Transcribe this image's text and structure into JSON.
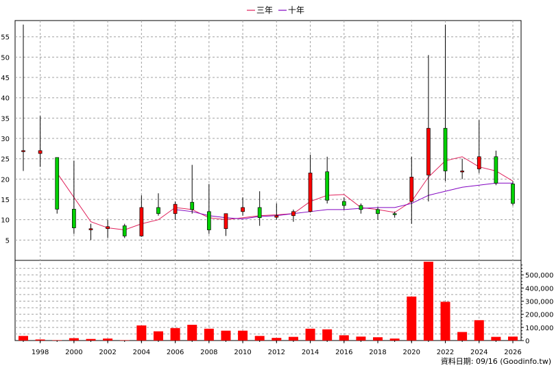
{
  "chart_data": {
    "type": "candlestick",
    "legend": [
      {
        "name": "三年",
        "color": "#e0205a"
      },
      {
        "name": "十年",
        "color": "#8000c0"
      }
    ],
    "legend_placement": "top-center",
    "price_axis": {
      "side": "left",
      "ticks": [
        5,
        10,
        15,
        20,
        25,
        30,
        35,
        40,
        45,
        50,
        55
      ],
      "range": [
        0,
        59
      ]
    },
    "volume_axis": {
      "side": "right",
      "ticks": [
        0,
        100000,
        200000,
        300000,
        400000,
        500000
      ],
      "tick_labels": [
        "0",
        "100,000",
        "200,000",
        "300,000",
        "400,000",
        "500,000"
      ],
      "range": [
        0,
        600000
      ]
    },
    "x_axis": {
      "ticks": [
        1998,
        2000,
        2002,
        2004,
        2006,
        2008,
        2010,
        2012,
        2014,
        2016,
        2018,
        2020,
        2022,
        2024,
        2026
      ]
    },
    "grid": true,
    "colors": {
      "up": "#ff0000",
      "down": "#00d000",
      "volume": "#ff0000",
      "wick": "#000000"
    },
    "candles": [
      {
        "year": 1997,
        "open": 27.0,
        "close": 27.0,
        "high": 58.0,
        "low": 22.0,
        "volume": 35000
      },
      {
        "year": 1998,
        "open": 26.3,
        "close": 27.0,
        "high": 35.5,
        "low": 23.0,
        "volume": 8000
      },
      {
        "year": 1999,
        "open": 25.3,
        "close": 12.6,
        "high": 25.3,
        "low": 11.5,
        "volume": 3000
      },
      {
        "year": 2000,
        "open": 12.6,
        "close": 8.0,
        "high": 24.5,
        "low": 6.5,
        "volume": 18000
      },
      {
        "year": 2001,
        "open": 7.5,
        "close": 7.8,
        "high": 9.0,
        "low": 5.0,
        "volume": 12000
      },
      {
        "year": 2002,
        "open": 7.8,
        "close": 8.3,
        "high": 10.0,
        "low": 5.5,
        "volume": 15000
      },
      {
        "year": 2003,
        "open": 8.5,
        "close": 6.0,
        "high": 9.0,
        "low": 5.5,
        "volume": 3000
      },
      {
        "year": 2004,
        "open": 6.0,
        "close": 13.0,
        "high": 16.0,
        "low": 5.8,
        "volume": 115000
      },
      {
        "year": 2005,
        "open": 13.0,
        "close": 11.5,
        "high": 16.5,
        "low": 11.0,
        "volume": 70000
      },
      {
        "year": 2006,
        "open": 11.5,
        "close": 13.8,
        "high": 14.5,
        "low": 10.0,
        "volume": 95000
      },
      {
        "year": 2007,
        "open": 14.3,
        "close": 12.5,
        "high": 23.5,
        "low": 11.5,
        "volume": 120000
      },
      {
        "year": 2008,
        "open": 12.0,
        "close": 7.5,
        "high": 18.8,
        "low": 6.5,
        "volume": 90000
      },
      {
        "year": 2009,
        "open": 7.8,
        "close": 11.5,
        "high": 11.5,
        "low": 6.0,
        "volume": 75000
      },
      {
        "year": 2010,
        "open": 12.0,
        "close": 13.0,
        "high": 15.5,
        "low": 11.0,
        "volume": 75000
      },
      {
        "year": 2011,
        "open": 13.0,
        "close": 10.5,
        "high": 17.0,
        "low": 8.5,
        "volume": 35000
      },
      {
        "year": 2012,
        "open": 10.6,
        "close": 11.0,
        "high": 14.0,
        "low": 10.0,
        "volume": 20000
      },
      {
        "year": 2013,
        "open": 11.0,
        "close": 12.0,
        "high": 12.5,
        "low": 9.5,
        "volume": 28000
      },
      {
        "year": 2014,
        "open": 12.0,
        "close": 21.5,
        "high": 26.0,
        "low": 11.8,
        "volume": 90000
      },
      {
        "year": 2015,
        "open": 21.8,
        "close": 14.8,
        "high": 25.5,
        "low": 14.0,
        "volume": 85000
      },
      {
        "year": 2016,
        "open": 14.5,
        "close": 13.5,
        "high": 15.5,
        "low": 12.5,
        "volume": 40000
      },
      {
        "year": 2017,
        "open": 13.5,
        "close": 12.5,
        "high": 14.0,
        "low": 11.5,
        "volume": 30000
      },
      {
        "year": 2018,
        "open": 12.5,
        "close": 11.5,
        "high": 13.0,
        "low": 10.0,
        "volume": 25000
      },
      {
        "year": 2019,
        "open": 11.5,
        "close": 11.3,
        "high": 12.0,
        "low": 10.5,
        "volume": 15000
      },
      {
        "year": 2020,
        "open": 14.5,
        "close": 20.5,
        "high": 25.5,
        "low": 9.0,
        "volume": 335000
      },
      {
        "year": 2021,
        "open": 21.0,
        "close": 32.5,
        "high": 50.5,
        "low": 14.5,
        "volume": 600000
      },
      {
        "year": 2022,
        "open": 32.5,
        "close": 22.0,
        "high": 58.0,
        "low": 19.5,
        "volume": 295000
      },
      {
        "year": 2023,
        "open": 22.0,
        "close": 22.0,
        "high": 25.0,
        "low": 20.0,
        "volume": 65000
      },
      {
        "year": 2024,
        "open": 22.5,
        "close": 25.5,
        "high": 34.5,
        "low": 21.5,
        "volume": 155000
      },
      {
        "year": 2025,
        "open": 25.5,
        "close": 19.0,
        "high": 27.0,
        "low": 18.5,
        "volume": 28000
      },
      {
        "year": 2026,
        "open": 18.8,
        "close": 14.0,
        "high": 19.5,
        "low": 13.5,
        "volume": 30000
      }
    ],
    "series": [
      {
        "name": "三年",
        "points": [
          [
            1999,
            21.5
          ],
          [
            2000,
            15.5
          ],
          [
            2001,
            9.5
          ],
          [
            2002,
            8.0
          ],
          [
            2003,
            7.5
          ],
          [
            2004,
            9.0
          ],
          [
            2005,
            10.0
          ],
          [
            2006,
            13.0
          ],
          [
            2007,
            12.5
          ],
          [
            2008,
            10.5
          ],
          [
            2009,
            10.0
          ],
          [
            2010,
            10.5
          ],
          [
            2011,
            11.0
          ],
          [
            2012,
            11.2
          ],
          [
            2013,
            11.5
          ],
          [
            2014,
            14.5
          ],
          [
            2015,
            16.0
          ],
          [
            2016,
            16.2
          ],
          [
            2017,
            13.0
          ],
          [
            2018,
            12.5
          ],
          [
            2019,
            11.8
          ],
          [
            2020,
            14.5
          ],
          [
            2021,
            20.5
          ],
          [
            2022,
            24.5
          ],
          [
            2023,
            25.5
          ],
          [
            2024,
            23.0
          ],
          [
            2025,
            22.0
          ],
          [
            2026,
            19.5
          ]
        ]
      },
      {
        "name": "十年",
        "points": [
          [
            2006,
            12.5
          ],
          [
            2007,
            12.0
          ],
          [
            2008,
            11.0
          ],
          [
            2009,
            10.5
          ],
          [
            2010,
            10.2
          ],
          [
            2011,
            10.8
          ],
          [
            2012,
            11.0
          ],
          [
            2013,
            11.5
          ],
          [
            2014,
            12.0
          ],
          [
            2015,
            12.5
          ],
          [
            2016,
            12.5
          ],
          [
            2017,
            12.8
          ],
          [
            2018,
            13.0
          ],
          [
            2019,
            13.0
          ],
          [
            2020,
            14.0
          ],
          [
            2021,
            16.0
          ],
          [
            2022,
            17.0
          ],
          [
            2023,
            18.0
          ],
          [
            2024,
            18.5
          ],
          [
            2025,
            19.0
          ],
          [
            2026,
            19.0
          ]
        ]
      }
    ]
  },
  "source_label": "資料日期: 09/16  (Goodinfo.tw)"
}
